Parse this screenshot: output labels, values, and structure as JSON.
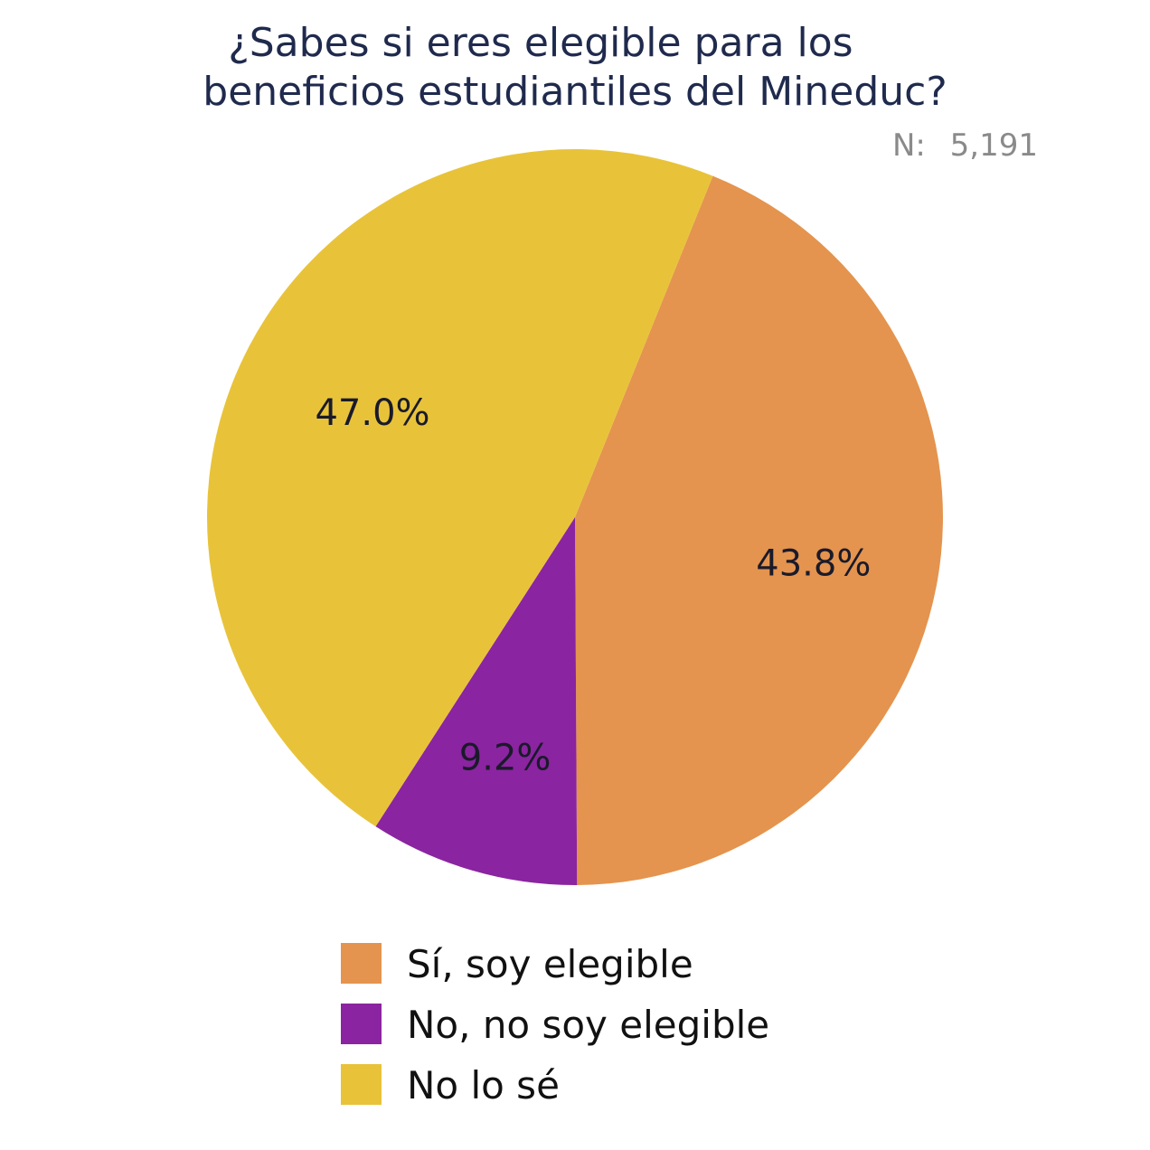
{
  "chart_data": {
    "type": "pie",
    "title_lines": [
      "¿Sabes si eres elegible para los",
      "beneficios estudiantiles del Mineduc?"
    ],
    "n_label": "N:",
    "n_value": "5,191",
    "slices": [
      {
        "label": "Sí, soy elegible",
        "value": 43.8,
        "value_label": "43.8%",
        "color": "#E4944E"
      },
      {
        "label": "No, no soy elegible",
        "value": 9.2,
        "value_label": "9.2%",
        "color": "#8B24A0"
      },
      {
        "label": "No lo sé",
        "value": 47.0,
        "value_label": "47.0%",
        "color": "#E8C33A"
      }
    ],
    "legend_position": "bottom"
  }
}
